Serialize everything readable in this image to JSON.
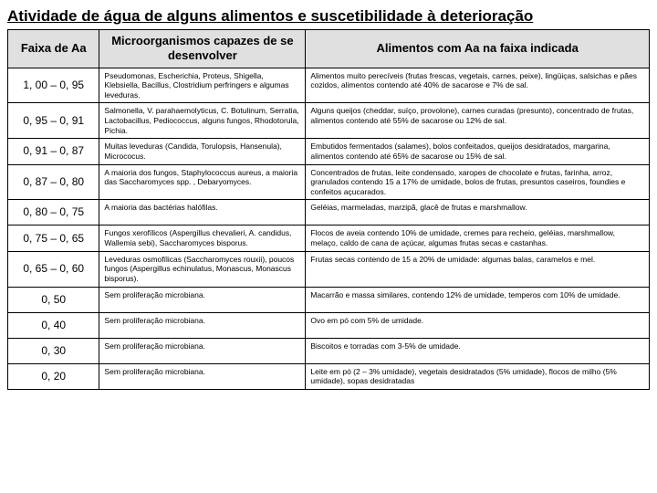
{
  "title": "Atividade de água de alguns alimentos e suscetibilidade à deterioração",
  "headers": {
    "col1": "Faixa de Aa",
    "col2": "Microorganismos capazes de se desenvolver",
    "col3": "Alimentos com Aa na faixa indicada"
  },
  "rows": [
    {
      "range": "1, 00 – 0, 95",
      "micro": "Pseudomonas, Escherichia, Proteus, Shigella, Klebsiella, Bacillus, Clostridium perfringers e algumas leveduras.",
      "foods": "Alimentos muito perecíveis (frutas frescas, vegetais, carnes, peixe), lingüiças, salsichas e pães cozidos, alimentos contendo até 40% de sacarose e 7% de sal."
    },
    {
      "range": "0, 95 – 0, 91",
      "micro": "Salmonella, V. parahaemolyticus, C. Botulinum, Serratia, Lactobacillus, Pediococcus, alguns fungos, Rhodotorula, Pichia.",
      "foods": "Alguns queijos (cheddar, suíço, provolone), carnes curadas (presunto), concentrado de frutas, alimentos contendo até 55% de sacarose ou 12% de sal."
    },
    {
      "range": "0, 91 – 0, 87",
      "micro": "Muitas leveduras (Candida, Torulopsis, Hansenula), Micrococus.",
      "foods": "Embutidos fermentados (salames), bolos confeitados, queijos desidratados, margarina, alimentos contendo até 65% de sacarose ou 15% de sal."
    },
    {
      "range": "0, 87 – 0, 80",
      "micro": "A maioria dos fungos, Staphylococcus aureus, a maioria das Saccharomyces spp. , Debaryomyces.",
      "foods": "Concentrados de frutas, leite condensado, xaropes de chocolate e frutas, farinha, arroz, granulados contendo 15 a 17% de umidade, bolos de frutas, presuntos caseiros, foundies e confeitos açucarados."
    },
    {
      "range": "0, 80 – 0, 75",
      "micro": "A maioria das bactérias halófilas.",
      "foods": "Geléias, marmeladas, marzipã, glacê de frutas e marshmallow."
    },
    {
      "range": "0, 75 – 0, 65",
      "micro": "Fungos xerofílicos (Aspergillus chevalieri, A. candidus, Wallemia sebi), Saccharomyces bisporus.",
      "foods": "Flocos de aveia contendo 10% de umidade, cremes para recheio, geléias, marshmallow, melaço, caldo de cana de açúcar, algumas frutas secas e castanhas."
    },
    {
      "range": "0, 65 – 0, 60",
      "micro": "Leveduras osmofílicas (Saccharomyces rouxii), poucos fungos (Aspergillus echinulatus, Monascus, Monascus bisporus).",
      "foods": "Frutas secas contendo de 15 a 20% de umidade: algumas balas, caramelos e mel."
    },
    {
      "range": "0, 50",
      "micro": "Sem proliferação microbiana.",
      "foods": "Macarrão e massa similares, contendo 12% de umidade, temperos com 10% de umidade."
    },
    {
      "range": "0, 40",
      "micro": "Sem proliferação microbiana.",
      "foods": "Ovo em pó com 5% de umidade."
    },
    {
      "range": "0, 30",
      "micro": "Sem proliferação microbiana.",
      "foods": "Biscoitos e torradas com 3-5% de umidade."
    },
    {
      "range": "0, 20",
      "micro": "Sem proliferação microbiana.",
      "foods": "Leite em pó (2 – 3% umidade), vegetais desidratados (5% umidade), flocos de milho (5% umidade), sopas desidratadas"
    }
  ]
}
